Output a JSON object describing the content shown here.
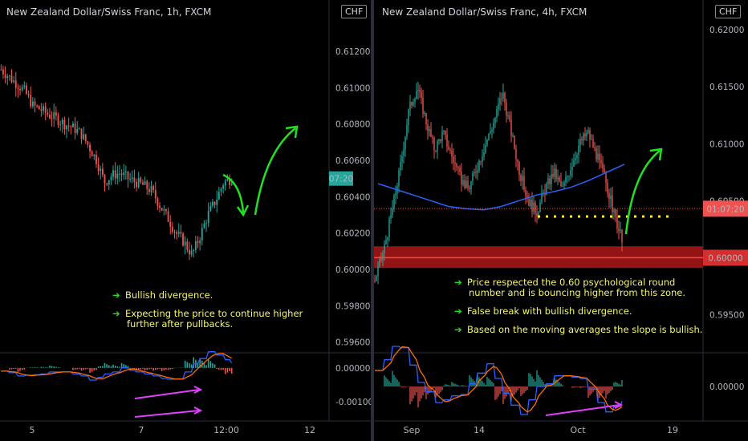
{
  "left": {
    "title": "New Zealand Dollar/Swiss Franc, 1h, FXCM",
    "currency": "CHF",
    "price_ticks": [
      "0.61200",
      "0.61000",
      "0.60800",
      "0.60600",
      "0.60400",
      "0.60200",
      "0.60000",
      "0.59800",
      "0.59600"
    ],
    "price_badge": "07:20",
    "ind_ticks": [
      "0.00000",
      "-0.00100"
    ],
    "time_ticks": [
      "5",
      "7",
      "12:00",
      "12"
    ],
    "annotations": [
      "Bullish divergence.",
      "Expecting the price to continue higher further after pullbacks."
    ]
  },
  "right": {
    "title": "New Zealand Dollar/Swiss Franc, 4h, FXCM",
    "currency": "CHF",
    "price_ticks": [
      "0.62000",
      "0.61500",
      "0.61000",
      "0.60500",
      "0.60000",
      "0.59500"
    ],
    "price_badge": "01:07:20",
    "level_badge": "0.60000",
    "ind_ticks": [
      "0.00000"
    ],
    "time_ticks": [
      "Sep",
      "14",
      "Oct",
      "19"
    ],
    "annotations": [
      "Price respected the 0.60 psychological round number and is bouncing higher from this zone.",
      "False break with bullish divergence.",
      "Based on the moving averages the slope is bullish."
    ]
  },
  "colors": {
    "up": "#26a69a",
    "down": "#ef5350",
    "zone": "#c41b1b",
    "ma": "#2962ff",
    "arrow": "#22e022",
    "note": "#f5f56a",
    "divergence": "#e040fb"
  },
  "chart_data": [
    {
      "type": "candlestick",
      "title": "New Zealand Dollar/Swiss Franc, 1h, FXCM",
      "ylim": [
        0.5955,
        0.6135
      ],
      "x_ticks": [
        "5",
        "7",
        "12:00",
        "12"
      ],
      "close_path": [
        0.611,
        0.6106,
        0.6102,
        0.6098,
        0.609,
        0.6088,
        0.6085,
        0.6083,
        0.608,
        0.6078,
        0.6075,
        0.6068,
        0.606,
        0.6048,
        0.6052,
        0.6053,
        0.605,
        0.6048,
        0.6046,
        0.6043,
        0.6035,
        0.6028,
        0.602,
        0.6015,
        0.6008,
        0.6018,
        0.603,
        0.6038,
        0.6048,
        0.605
      ],
      "indicator": {
        "type": "macd",
        "ylim": [
          -0.0015,
          0.0004
        ]
      }
    },
    {
      "type": "candlestick",
      "title": "New Zealand Dollar/Swiss Franc, 4h, FXCM",
      "ylim": [
        0.5918,
        0.6205
      ],
      "x_ticks": [
        "Sep",
        "14",
        "Oct",
        "19"
      ],
      "close_path": [
        0.598,
        0.6005,
        0.604,
        0.608,
        0.613,
        0.615,
        0.612,
        0.6095,
        0.611,
        0.609,
        0.607,
        0.606,
        0.608,
        0.61,
        0.612,
        0.6145,
        0.611,
        0.6075,
        0.605,
        0.604,
        0.606,
        0.6075,
        0.606,
        0.608,
        0.61,
        0.611,
        0.609,
        0.607,
        0.604,
        0.6015
      ],
      "moving_average": [
        0.6065,
        0.606,
        0.6055,
        0.605,
        0.6045,
        0.6043,
        0.6042,
        0.6045,
        0.605,
        0.6055,
        0.6058,
        0.6062,
        0.6068,
        0.6075,
        0.6082
      ],
      "zone": [
        0.5991,
        0.601
      ],
      "level": 0.6,
      "indicator": {
        "type": "macd",
        "ylim": [
          -0.0012,
          0.0012
        ]
      }
    }
  ]
}
